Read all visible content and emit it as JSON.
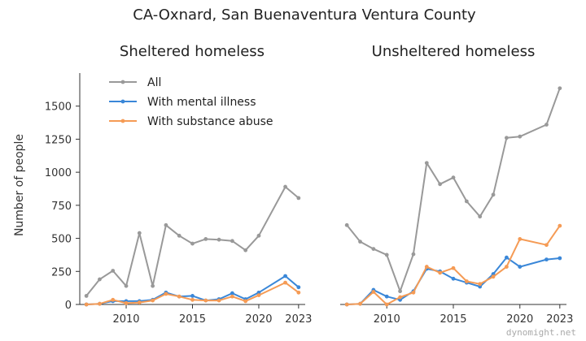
{
  "title": "CA-Oxnard, San Buenaventura Ventura County",
  "credit": "dynomight.net",
  "colors": {
    "All": "#999999",
    "With mental illness": "#3a87d8",
    "With substance abuse": "#f59b55"
  },
  "chart_data": [
    {
      "type": "line",
      "title": "Sheltered homeless",
      "ylabel": "Number of people",
      "xlim": [
        2006.5,
        2023.5
      ],
      "ylim": [
        0,
        1750
      ],
      "xticks": [
        2010,
        2015,
        2020,
        2023
      ],
      "yticks": [
        0,
        250,
        500,
        750,
        1000,
        1250,
        1500
      ],
      "legend": "top-left",
      "series": [
        {
          "name": "All",
          "points": [
            [
              2007,
              65
            ],
            [
              2008,
              190
            ],
            [
              2009,
              255
            ],
            [
              2010,
              140
            ],
            [
              2011,
              540
            ],
            [
              2012,
              140
            ],
            [
              2013,
              600
            ],
            [
              2014,
              520
            ],
            [
              2015,
              460
            ],
            [
              2016,
              495
            ],
            [
              2017,
              490
            ],
            [
              2018,
              480
            ],
            [
              2019,
              410
            ],
            [
              2020,
              520
            ],
            [
              2022,
              890
            ],
            [
              2023,
              805
            ]
          ]
        },
        {
          "name": "With mental illness",
          "points": [
            [
              2007,
              0
            ],
            [
              2008,
              5
            ],
            [
              2009,
              25
            ],
            [
              2010,
              25
            ],
            [
              2011,
              25
            ],
            [
              2012,
              35
            ],
            [
              2013,
              90
            ],
            [
              2014,
              60
            ],
            [
              2015,
              65
            ],
            [
              2016,
              30
            ],
            [
              2017,
              40
            ],
            [
              2018,
              85
            ],
            [
              2019,
              40
            ],
            [
              2020,
              90
            ],
            [
              2022,
              215
            ],
            [
              2023,
              130
            ]
          ]
        },
        {
          "name": "With substance abuse",
          "points": [
            [
              2007,
              0
            ],
            [
              2008,
              5
            ],
            [
              2009,
              35
            ],
            [
              2010,
              10
            ],
            [
              2011,
              15
            ],
            [
              2012,
              30
            ],
            [
              2013,
              80
            ],
            [
              2014,
              60
            ],
            [
              2015,
              35
            ],
            [
              2016,
              30
            ],
            [
              2017,
              30
            ],
            [
              2018,
              60
            ],
            [
              2019,
              25
            ],
            [
              2020,
              70
            ],
            [
              2022,
              165
            ],
            [
              2023,
              90
            ]
          ]
        }
      ]
    },
    {
      "type": "line",
      "title": "Unsheltered homeless",
      "xlim": [
        2006.5,
        2023.5
      ],
      "ylim": [
        0,
        1750
      ],
      "xticks": [
        2010,
        2015,
        2020,
        2023
      ],
      "series": [
        {
          "name": "All",
          "points": [
            [
              2007,
              600
            ],
            [
              2008,
              475
            ],
            [
              2009,
              420
            ],
            [
              2010,
              375
            ],
            [
              2011,
              100
            ],
            [
              2012,
              380
            ],
            [
              2013,
              1070
            ],
            [
              2014,
              910
            ],
            [
              2015,
              960
            ],
            [
              2016,
              780
            ],
            [
              2017,
              665
            ],
            [
              2018,
              830
            ],
            [
              2019,
              1260
            ],
            [
              2020,
              1270
            ],
            [
              2022,
              1360
            ],
            [
              2023,
              1635
            ]
          ]
        },
        {
          "name": "With mental illness",
          "points": [
            [
              2007,
              0
            ],
            [
              2008,
              5
            ],
            [
              2009,
              110
            ],
            [
              2010,
              60
            ],
            [
              2011,
              35
            ],
            [
              2012,
              100
            ],
            [
              2013,
              270
            ],
            [
              2014,
              250
            ],
            [
              2015,
              195
            ],
            [
              2016,
              165
            ],
            [
              2017,
              135
            ],
            [
              2018,
              230
            ],
            [
              2019,
              355
            ],
            [
              2020,
              285
            ],
            [
              2022,
              340
            ],
            [
              2023,
              350
            ]
          ]
        },
        {
          "name": "With substance abuse",
          "points": [
            [
              2007,
              0
            ],
            [
              2008,
              5
            ],
            [
              2009,
              95
            ],
            [
              2010,
              0
            ],
            [
              2011,
              55
            ],
            [
              2012,
              90
            ],
            [
              2013,
              285
            ],
            [
              2014,
              240
            ],
            [
              2015,
              275
            ],
            [
              2016,
              175
            ],
            [
              2017,
              155
            ],
            [
              2018,
              210
            ],
            [
              2019,
              285
            ],
            [
              2020,
              495
            ],
            [
              2022,
              450
            ],
            [
              2023,
              595
            ]
          ]
        }
      ]
    }
  ]
}
